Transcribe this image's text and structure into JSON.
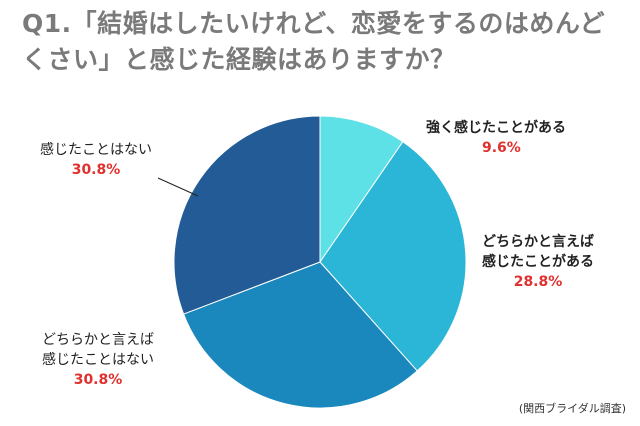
{
  "title": {
    "line1": "Q1.「結婚はしたいけれど、恋愛をするのはめんど",
    "line2": "くさい」と感じた経験はありますか？"
  },
  "source": "(関西ブライダル調査)",
  "chart_data": {
    "type": "pie",
    "title": "Q1.「結婚はしたいけれど、恋愛をするのはめんどくさい」と感じた経験はありますか？",
    "slices": [
      {
        "label": "強く感じたことがある",
        "label_lines": [
          "強く感じたことがある"
        ],
        "value": 9.6,
        "value_label": "9.6%",
        "color": "#5de0e6"
      },
      {
        "label": "どちらかと言えば感じたことがある",
        "label_lines": [
          "どちらかと言えば",
          "感じたことがある"
        ],
        "value": 28.8,
        "value_label": "28.8%",
        "color": "#2bb5d6"
      },
      {
        "label": "どちらかと言えば感じたことはない",
        "label_lines": [
          "どちらかと言えば",
          "感じたことはない"
        ],
        "value": 30.8,
        "value_label": "30.8%",
        "color": "#1a87bd"
      },
      {
        "label": "感じたことはない",
        "label_lines": [
          "感じたことはない"
        ],
        "value": 30.8,
        "value_label": "30.8%",
        "color": "#235b97"
      }
    ],
    "legend": "none"
  }
}
